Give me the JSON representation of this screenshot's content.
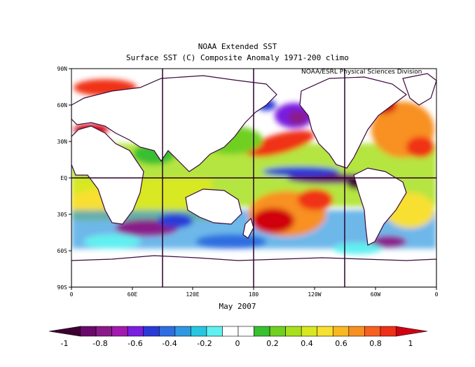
{
  "title": "NOAA Extended SST",
  "subtitle": "Surface SST (C) Composite Anomaly 1971-200 climo",
  "credit": "NOAA/ESRL Physical Sciences Division",
  "date_label": "May 2007",
  "lat_labels": [
    "90N",
    "60N",
    "30N",
    "EQ",
    "30S",
    "60S",
    "90S"
  ],
  "lon_labels": [
    "0",
    "60E",
    "120E",
    "180",
    "120W",
    "60W",
    "0"
  ],
  "colorbar": {
    "labels": [
      "-1",
      "-0.8",
      "-0.6",
      "-0.4",
      "-0.2",
      "0",
      "0.2",
      "0.4",
      "0.6",
      "0.8",
      "1"
    ],
    "colors": [
      "#3d0032",
      "#6a0a6b",
      "#8a1a8a",
      "#a21ab0",
      "#7a1ee0",
      "#2a3ad8",
      "#2f6de0",
      "#3098e0",
      "#27c7e0",
      "#60f0f0",
      "#ffffff",
      "#ffffff",
      "#38c030",
      "#70d020",
      "#a8e01c",
      "#d8e820",
      "#f8e030",
      "#f8b820",
      "#f89020",
      "#f86020",
      "#f03018",
      "#d00010"
    ]
  },
  "colors": {
    "land": "#ffffff",
    "coast": "#3a0a3a",
    "grid": "#2a002a",
    "ocean_neutral": "#ffffff"
  }
}
